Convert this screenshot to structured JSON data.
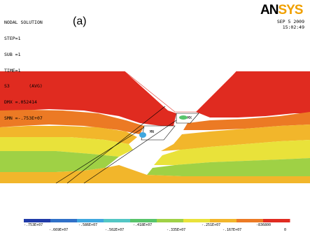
{
  "info": {
    "lines": [
      "NODAL SOLUTION",
      "STEP=1",
      "SUB =1",
      "TIME=1",
      "S3       (AVG)",
      "DMX =.052414",
      "SMN =-.753E+07"
    ]
  },
  "panel_label": "(a)",
  "logo": {
    "part_a": "AN",
    "part_b": "SYS"
  },
  "timestamp": {
    "date": "SEP  5 2009",
    "time": "15:02:49"
  },
  "markers": {
    "mx": "MX",
    "mn": "MN"
  },
  "legend": {
    "colors": [
      "#1f3aa8",
      "#2f70c8",
      "#3fa7df",
      "#52c6c4",
      "#57c46b",
      "#9fd145",
      "#e9e23a",
      "#f2b62b",
      "#ec7a24",
      "#e02b20"
    ],
    "ticks_top": [
      "-.753E+07",
      "-.586E+07",
      "-.418E+07",
      "-.251E+07",
      "-836800"
    ],
    "ticks_bottom": [
      "-.669E+07",
      "-.502E+07",
      "-.335E+07",
      "-.167E+07",
      "0"
    ]
  }
}
